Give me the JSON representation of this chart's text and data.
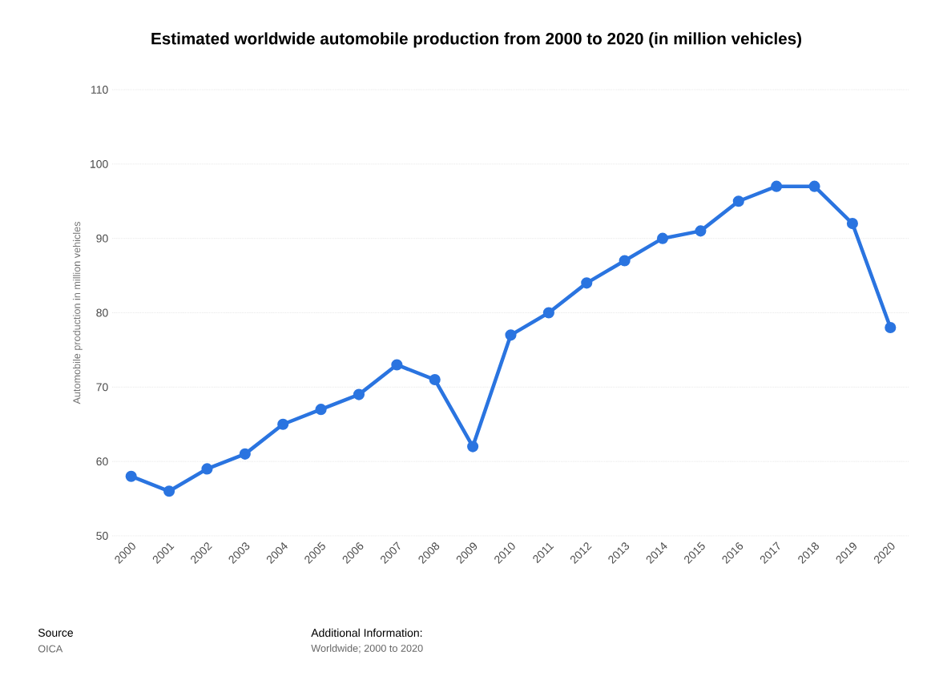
{
  "chart_data": {
    "type": "line",
    "title": "Estimated worldwide automobile production from 2000 to 2020 (in million vehicles)",
    "ylabel": "Automobile production in million vehicles",
    "categories": [
      "2000",
      "2001",
      "2002",
      "2003",
      "2004",
      "2005",
      "2006",
      "2007",
      "2008",
      "2009",
      "2010",
      "2011",
      "2012",
      "2013",
      "2014",
      "2015",
      "2016",
      "2017",
      "2018",
      "2019",
      "2020"
    ],
    "values": [
      58,
      56,
      59,
      61,
      65,
      67,
      69,
      73,
      71,
      62,
      77,
      80,
      84,
      87,
      90,
      91,
      95,
      97,
      97,
      92,
      78
    ],
    "color": "#2a74e0",
    "marker": "circle",
    "line_style": "solid",
    "ylim": [
      50,
      110
    ],
    "yticks": [
      50,
      60,
      70,
      80,
      90,
      100,
      110
    ],
    "grid": "y",
    "annotations": [
      "Source",
      "OICA",
      "Additional Information:",
      "Worldwide; 2000 to 2020"
    ]
  }
}
